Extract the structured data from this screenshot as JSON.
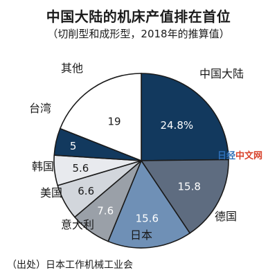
{
  "chart_data": {
    "type": "pie",
    "title": "中国大陆的机床产值排在首位",
    "subtitle": "（切削型和成形型，2018年的推算值）",
    "source": "（出处）日本工作机械工业会",
    "slices": [
      {
        "label": "中国大陆",
        "value": 24.8,
        "value_label": "24.8%",
        "color": "#12395e",
        "text_color": "#ffffff"
      },
      {
        "label": "德国",
        "value": 15.8,
        "value_label": "15.8",
        "color": "#5e6c80",
        "text_color": "#ffffff"
      },
      {
        "label": "日本",
        "value": 15.6,
        "value_label": "15.6",
        "color": "#6f90b6",
        "text_color": "#ffffff"
      },
      {
        "label": "意大利",
        "value": 7.6,
        "value_label": "7.6",
        "color": "#9aa0a8",
        "text_color": "#ffffff"
      },
      {
        "label": "美国",
        "value": 6.6,
        "value_label": "6.6",
        "color": "#d2d6dc",
        "text_color": "#1a1a1a"
      },
      {
        "label": "韩国",
        "value": 5.6,
        "value_label": "5.6",
        "color": "#e8eaee",
        "text_color": "#1a1a1a"
      },
      {
        "label": "台湾",
        "value": 5,
        "value_label": "5",
        "color": "#12395e",
        "text_color": "#ffffff"
      },
      {
        "label": "其他",
        "value": 19,
        "value_label": "19",
        "color": "#ffffff",
        "text_color": "#1a1a1a"
      }
    ]
  },
  "watermark": {
    "part_a": "日经",
    "part_b": "中文网"
  }
}
